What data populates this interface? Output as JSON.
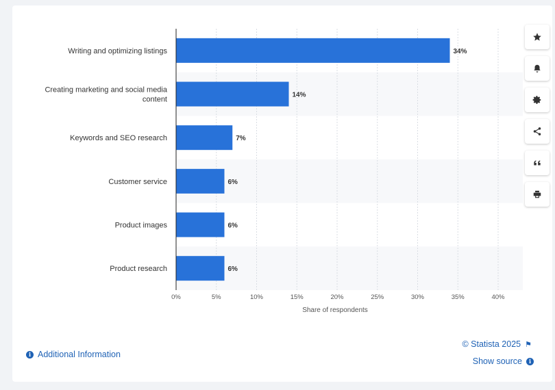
{
  "chart_data": {
    "type": "bar",
    "orientation": "horizontal",
    "categories": [
      "Writing and optimizing listings",
      "Creating marketing and social media content",
      "Keywords and SEO research",
      "Customer service",
      "Product images",
      "Product research"
    ],
    "category_lines": [
      [
        "Writing and optimizing listings"
      ],
      [
        "Creating marketing and social media",
        "content"
      ],
      [
        "Keywords and SEO research"
      ],
      [
        "Customer service"
      ],
      [
        "Product images"
      ],
      [
        "Product research"
      ]
    ],
    "values": [
      34,
      14,
      7,
      6,
      6,
      6
    ],
    "value_labels": [
      "34%",
      "14%",
      "7%",
      "6%",
      "6%",
      "6%"
    ],
    "xlim": [
      0,
      40
    ],
    "xticks": [
      0,
      5,
      10,
      15,
      20,
      25,
      30,
      35,
      40
    ],
    "xtick_labels": [
      "0%",
      "5%",
      "10%",
      "15%",
      "20%",
      "25%",
      "30%",
      "35%",
      "40%"
    ],
    "xlabel": "Share of respondents",
    "grid": "vertical dashed",
    "bar_color": "#2872d9"
  },
  "toolbar": {
    "buttons": [
      {
        "name": "favorite-button",
        "icon": "star-icon"
      },
      {
        "name": "notification-button",
        "icon": "bell-icon"
      },
      {
        "name": "settings-button",
        "icon": "gear-icon"
      },
      {
        "name": "share-button",
        "icon": "share-icon"
      },
      {
        "name": "cite-button",
        "icon": "quote-icon"
      },
      {
        "name": "print-button",
        "icon": "print-icon"
      }
    ]
  },
  "footer": {
    "additional_info": "Additional Information",
    "credit": "© Statista 2025",
    "show_source": "Show source"
  },
  "colors": {
    "accent": "#1f62b5",
    "bar": "#2872d9",
    "value_label": "#333333"
  }
}
